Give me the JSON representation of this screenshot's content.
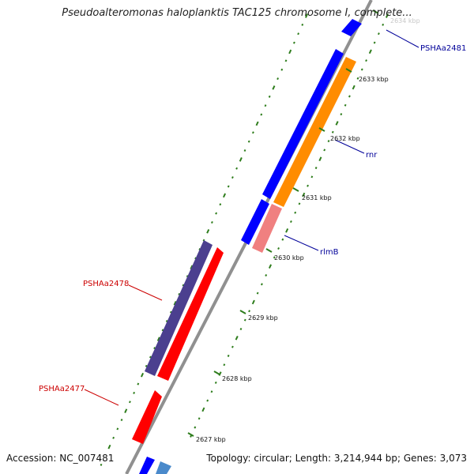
{
  "title": "Pseudoalteromonas haloplanktis TAC125 chromosome I, complete...",
  "footer": {
    "accession": "Accession: NC_007481",
    "topology": "Topology: circular; Length: 3,214,944 bp; Genes: 3,073"
  },
  "colors": {
    "backbone": "#909090",
    "tick": "#2e7d1c",
    "forward_gene": "#0000ff",
    "forward_gene_alt": "#4a8acb",
    "rna_operon": "#ff8c00",
    "rlmB_gene": "#f08080",
    "reverse_gene_selected": "#ff0000",
    "reverse_gene_other": "#4b3f8f",
    "label_blue": "#000099",
    "label_red": "#cc0000"
  },
  "ruler": {
    "ticks": [
      "2627 kbp",
      "2628 kbp",
      "2629 kbp",
      "2630 kbp",
      "2631 kbp",
      "2632 kbp",
      "2633 kbp",
      "2634 kbp"
    ]
  },
  "features": [
    {
      "name": "PSHAa2481",
      "label_color": "blue"
    },
    {
      "name": "rnr",
      "label_color": "blue"
    },
    {
      "name": "rlmB",
      "label_color": "blue"
    },
    {
      "name": "PSHAa2478",
      "label_color": "red"
    },
    {
      "name": "PSHAa2477",
      "label_color": "red"
    }
  ]
}
